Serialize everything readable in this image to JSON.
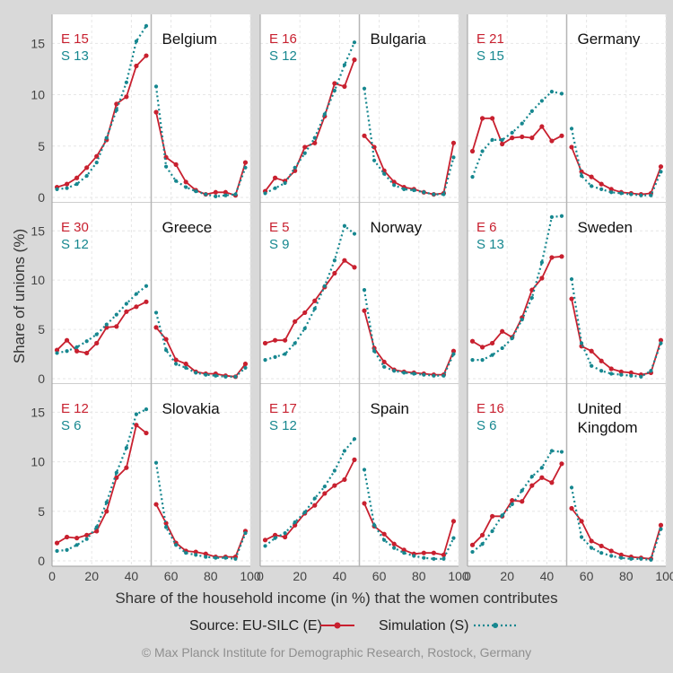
{
  "chart_data": {
    "type": "line",
    "xlabel": "Share of the household income (in %) that the women contributes",
    "ylabel": "Share of unions (%)",
    "xlim": [
      0,
      100
    ],
    "ylim": [
      0,
      17
    ],
    "x_ticks": [
      0,
      20,
      40,
      60,
      80,
      100
    ],
    "y_ticks": [
      0,
      5,
      10,
      15
    ],
    "grid": true,
    "legend": {
      "source_label": "Source:",
      "items": [
        {
          "name": "EU-SILC (E)",
          "color": "#c8202f",
          "style": "solid"
        },
        {
          "name": "Simulation (S)",
          "color": "#16878f",
          "style": "dotted"
        }
      ]
    },
    "credit": "© Max Planck Institute for Demographic Research, Rostock, Germany",
    "x": [
      2.5,
      7.5,
      12.5,
      17.5,
      22.5,
      27.5,
      32.5,
      37.5,
      42.5,
      47.5,
      52.5,
      57.5,
      62.5,
      67.5,
      72.5,
      77.5,
      82.5,
      87.5,
      92.5,
      97.5
    ],
    "panels": [
      {
        "country": [
          "Belgium"
        ],
        "e_label": "E",
        "e_value": "15",
        "s_label": "S",
        "s_value": "13",
        "series": [
          {
            "name": "EU-SILC (E)",
            "values": [
              1.0,
              1.3,
              1.9,
              2.9,
              4.0,
              5.6,
              9.1,
              9.8,
              12.8,
              13.8,
              8.3,
              3.9,
              3.2,
              1.5,
              0.7,
              0.3,
              0.5,
              0.5,
              0.2,
              3.4
            ]
          },
          {
            "name": "Simulation (S)",
            "values": [
              0.8,
              0.9,
              1.3,
              2.1,
              3.4,
              5.8,
              8.5,
              11.2,
              15.2,
              16.7,
              10.8,
              3.0,
              1.6,
              1.0,
              0.6,
              0.3,
              0.1,
              0.2,
              0.3,
              2.9
            ]
          }
        ]
      },
      {
        "country": [
          "Bulgaria"
        ],
        "e_label": "E",
        "e_value": "16",
        "s_label": "S",
        "s_value": "12",
        "series": [
          {
            "name": "EU-SILC (E)",
            "values": [
              0.6,
              1.9,
              1.6,
              2.6,
              4.9,
              5.3,
              7.9,
              11.1,
              10.8,
              13.4,
              6.0,
              4.9,
              2.6,
              1.5,
              1.0,
              0.8,
              0.5,
              0.3,
              0.4,
              5.3
            ]
          },
          {
            "name": "Simulation (S)",
            "values": [
              0.4,
              0.9,
              1.4,
              2.9,
              4.3,
              5.8,
              8.1,
              10.4,
              12.9,
              15.1,
              10.6,
              3.6,
              2.3,
              1.2,
              0.8,
              0.7,
              0.5,
              0.3,
              0.3,
              3.9
            ]
          }
        ]
      },
      {
        "country": [
          "Germany"
        ],
        "e_label": "E",
        "e_value": "21",
        "s_label": "S",
        "s_value": "15",
        "series": [
          {
            "name": "EU-SILC (E)",
            "values": [
              4.5,
              7.7,
              7.7,
              5.2,
              5.8,
              5.9,
              5.8,
              6.9,
              5.5,
              6.0,
              4.9,
              2.5,
              2.0,
              1.3,
              0.8,
              0.5,
              0.4,
              0.3,
              0.4,
              3.0
            ]
          },
          {
            "name": "Simulation (S)",
            "values": [
              2.0,
              4.5,
              5.6,
              5.6,
              6.3,
              7.2,
              8.4,
              9.4,
              10.3,
              10.1,
              6.7,
              2.1,
              1.1,
              0.8,
              0.5,
              0.4,
              0.3,
              0.2,
              0.2,
              2.5
            ]
          }
        ]
      },
      {
        "country": [
          "Greece"
        ],
        "e_label": "E",
        "e_value": "30",
        "s_label": "S",
        "s_value": "12",
        "series": [
          {
            "name": "EU-SILC (E)",
            "values": [
              2.9,
              3.9,
              2.8,
              2.6,
              3.6,
              5.2,
              5.3,
              6.8,
              7.3,
              7.8,
              5.2,
              4.0,
              1.9,
              1.5,
              0.7,
              0.5,
              0.5,
              0.3,
              0.2,
              1.5
            ]
          },
          {
            "name": "Simulation (S)",
            "values": [
              2.6,
              2.8,
              3.2,
              3.8,
              4.5,
              5.5,
              6.5,
              7.6,
              8.6,
              9.4,
              6.7,
              2.9,
              1.5,
              1.1,
              0.6,
              0.4,
              0.3,
              0.2,
              0.2,
              1.1
            ]
          }
        ]
      },
      {
        "country": [
          "Norway"
        ],
        "e_label": "E",
        "e_value": "5",
        "s_label": "S",
        "s_value": "9",
        "series": [
          {
            "name": "EU-SILC (E)",
            "values": [
              3.6,
              3.9,
              3.9,
              5.8,
              6.7,
              7.9,
              9.3,
              10.7,
              12.0,
              11.3,
              6.9,
              3.1,
              1.7,
              0.9,
              0.7,
              0.6,
              0.5,
              0.4,
              0.4,
              2.8
            ]
          },
          {
            "name": "Simulation (S)",
            "values": [
              1.9,
              2.2,
              2.5,
              3.6,
              5.1,
              7.1,
              9.4,
              12.0,
              15.5,
              14.7,
              9.0,
              2.8,
              1.2,
              0.8,
              0.6,
              0.5,
              0.4,
              0.3,
              0.3,
              2.5
            ]
          }
        ]
      },
      {
        "country": [
          "Sweden"
        ],
        "e_label": "E",
        "e_value": "6",
        "s_label": "S",
        "s_value": "13",
        "series": [
          {
            "name": "EU-SILC (E)",
            "values": [
              3.8,
              3.2,
              3.6,
              4.8,
              4.2,
              6.2,
              9.0,
              10.2,
              12.3,
              12.4,
              8.1,
              3.3,
              2.8,
              1.8,
              1.0,
              0.7,
              0.6,
              0.4,
              0.6,
              3.9
            ]
          },
          {
            "name": "Simulation (S)",
            "values": [
              1.9,
              1.9,
              2.4,
              3.1,
              4.1,
              6.0,
              8.2,
              11.8,
              16.4,
              16.5,
              10.1,
              3.6,
              1.3,
              0.8,
              0.5,
              0.4,
              0.3,
              0.2,
              0.8,
              3.6
            ]
          }
        ]
      },
      {
        "country": [
          "Slovakia"
        ],
        "e_label": "E",
        "e_value": "12",
        "s_label": "S",
        "s_value": "6",
        "series": [
          {
            "name": "EU-SILC (E)",
            "values": [
              1.8,
              2.4,
              2.3,
              2.6,
              3.0,
              5.0,
              8.4,
              9.4,
              13.7,
              12.9,
              5.7,
              3.8,
              1.8,
              1.0,
              0.9,
              0.7,
              0.4,
              0.4,
              0.4,
              3.0
            ]
          },
          {
            "name": "Simulation (S)",
            "values": [
              1.0,
              1.1,
              1.6,
              2.2,
              3.4,
              5.9,
              8.9,
              11.4,
              14.8,
              15.3,
              9.9,
              3.4,
              1.6,
              0.8,
              0.6,
              0.4,
              0.3,
              0.3,
              0.2,
              2.8
            ]
          }
        ]
      },
      {
        "country": [
          "Spain"
        ],
        "e_label": "E",
        "e_value": "17",
        "s_label": "S",
        "s_value": "12",
        "series": [
          {
            "name": "EU-SILC (E)",
            "values": [
              2.1,
              2.6,
              2.4,
              3.6,
              4.8,
              5.6,
              6.8,
              7.6,
              8.2,
              10.2,
              5.8,
              3.5,
              2.7,
              1.7,
              1.1,
              0.7,
              0.8,
              0.8,
              0.6,
              4.0
            ]
          },
          {
            "name": "Simulation (S)",
            "values": [
              1.5,
              2.3,
              2.8,
              3.9,
              4.9,
              6.3,
              7.5,
              9.1,
              11.1,
              12.3,
              9.2,
              3.6,
              2.1,
              1.3,
              0.8,
              0.5,
              0.3,
              0.2,
              0.2,
              2.3
            ]
          }
        ]
      },
      {
        "country": [
          "United",
          "Kingdom"
        ],
        "e_label": "E",
        "e_value": "16",
        "s_label": "S",
        "s_value": "6",
        "series": [
          {
            "name": "EU-SILC (E)",
            "values": [
              1.6,
              2.6,
              4.5,
              4.5,
              6.1,
              6.0,
              7.6,
              8.4,
              7.9,
              9.8,
              5.3,
              4.0,
              2.0,
              1.5,
              1.0,
              0.6,
              0.4,
              0.3,
              0.2,
              3.6
            ]
          },
          {
            "name": "Simulation (S)",
            "values": [
              0.9,
              1.7,
              3.0,
              4.6,
              5.7,
              7.1,
              8.5,
              9.4,
              11.1,
              11.0,
              7.4,
              2.4,
              1.3,
              0.8,
              0.5,
              0.3,
              0.2,
              0.2,
              0.1,
              3.2
            ]
          }
        ]
      }
    ]
  }
}
